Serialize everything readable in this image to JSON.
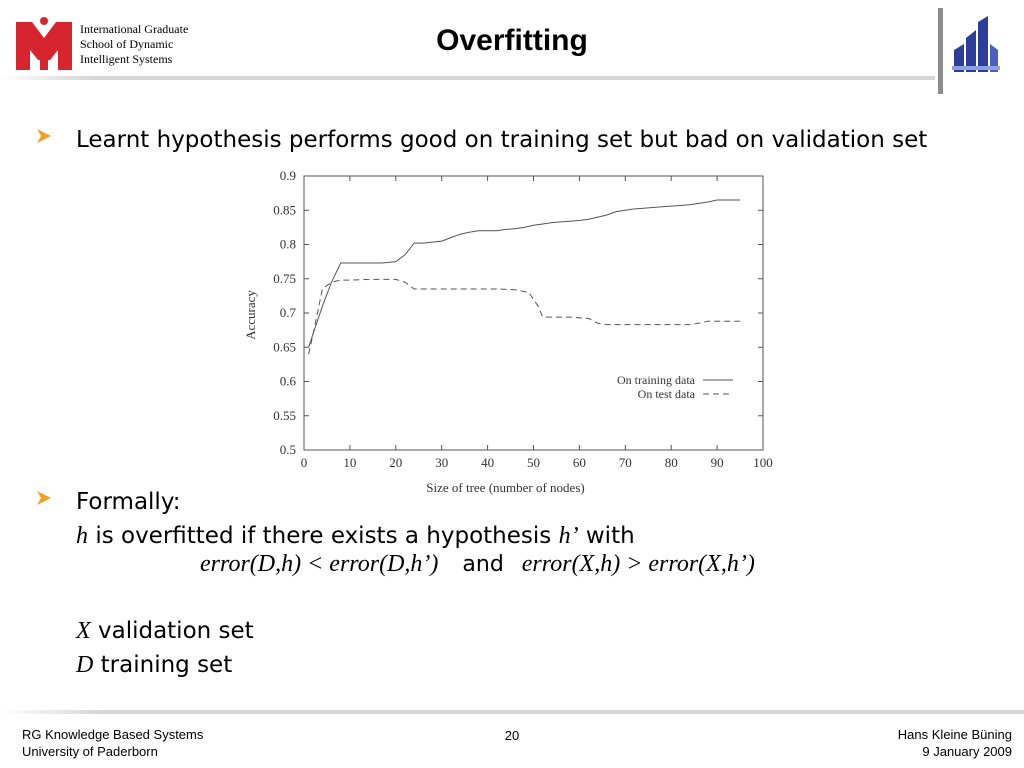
{
  "header": {
    "institute_lines": [
      "International Graduate",
      "School of Dynamic",
      "Intelligent Systems"
    ],
    "title": "Overfitting"
  },
  "bullets": {
    "first": "Learnt hypothesis performs good on training set but bad on validation set",
    "second_heading": "Formally:",
    "h_var": "h",
    "overfit_text": "is overfitted if there exists a hypothesis",
    "h_prime": "h’",
    "with": "with",
    "formula_left": "error(D,h) < error(D,h’)",
    "and": "and",
    "formula_right": "error(X,h) > error(X,h’)",
    "x_var": "X",
    "x_desc": "validation set",
    "d_var": "D",
    "d_desc": "training set"
  },
  "colors": {
    "logo_red": "#d7252f",
    "logo_blue": "#2c3d9c",
    "bullet_arrow": "#f0a023",
    "rule_gray": "#d6d6d6",
    "bar_gray": "#8d8d8d"
  },
  "chart_data": {
    "type": "line",
    "xlabel": "Size of tree (number of nodes)",
    "ylabel": "Accuracy",
    "xlim": [
      0,
      100
    ],
    "ylim": [
      0.5,
      0.9
    ],
    "xticks": [
      "0",
      "10",
      "20",
      "30",
      "40",
      "50",
      "60",
      "70",
      "80",
      "90",
      "100"
    ],
    "yticks": [
      "0.5",
      "0.55",
      "0.6",
      "0.65",
      "0.7",
      "0.75",
      "0.8",
      "0.85",
      "0.9"
    ],
    "legend_position": "bottom-right",
    "series": [
      {
        "name": "On training data",
        "style": "solid",
        "x": [
          1,
          2,
          4,
          6,
          8,
          10,
          14,
          17,
          20,
          22,
          24,
          26,
          30,
          32,
          34,
          36,
          38,
          40,
          42,
          44,
          46,
          48,
          50,
          52,
          54,
          56,
          58,
          60,
          62,
          64,
          66,
          68,
          70,
          72,
          74,
          76,
          78,
          80,
          82,
          84,
          86,
          88,
          90,
          92,
          95
        ],
        "values": [
          0.65,
          0.67,
          0.71,
          0.745,
          0.773,
          0.773,
          0.773,
          0.773,
          0.775,
          0.785,
          0.802,
          0.802,
          0.805,
          0.81,
          0.815,
          0.818,
          0.82,
          0.82,
          0.82,
          0.822,
          0.823,
          0.825,
          0.828,
          0.83,
          0.832,
          0.833,
          0.834,
          0.835,
          0.837,
          0.84,
          0.843,
          0.848,
          0.85,
          0.852,
          0.853,
          0.854,
          0.855,
          0.856,
          0.857,
          0.858,
          0.86,
          0.862,
          0.865,
          0.865,
          0.865
        ]
      },
      {
        "name": "On test data",
        "style": "dashed",
        "x": [
          1,
          2,
          4,
          6,
          8,
          10,
          14,
          17,
          20,
          22,
          24,
          26,
          30,
          34,
          38,
          42,
          46,
          49,
          51,
          52,
          54,
          58,
          62,
          64,
          66,
          70,
          74,
          78,
          82,
          84,
          86,
          88,
          90,
          92,
          95
        ],
        "values": [
          0.64,
          0.67,
          0.735,
          0.745,
          0.748,
          0.748,
          0.749,
          0.749,
          0.749,
          0.745,
          0.735,
          0.735,
          0.735,
          0.735,
          0.735,
          0.735,
          0.734,
          0.73,
          0.71,
          0.694,
          0.694,
          0.694,
          0.692,
          0.685,
          0.683,
          0.683,
          0.683,
          0.683,
          0.683,
          0.683,
          0.685,
          0.688,
          0.688,
          0.688,
          0.688
        ]
      }
    ]
  },
  "footer": {
    "left_lines": [
      "RG Knowledge Based Systems",
      "University of Paderborn"
    ],
    "page": "20",
    "right_lines": [
      "Hans Kleine Büning",
      "9 January 2009"
    ]
  }
}
